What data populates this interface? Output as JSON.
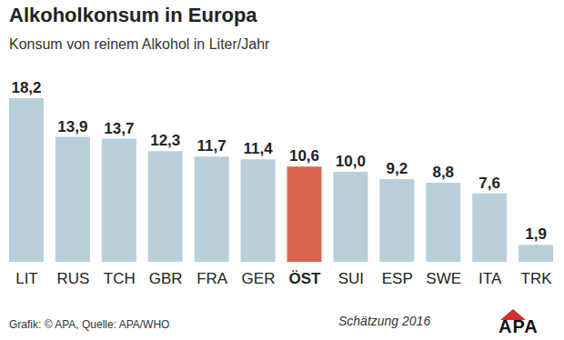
{
  "chart_data": {
    "type": "bar",
    "title": "Alkoholkonsum in Europa",
    "subtitle": "Konsum von reinem Alkohol in Liter/Jahr",
    "categories": [
      "LIT",
      "RUS",
      "TCH",
      "GBR",
      "FRA",
      "GER",
      "ÖST",
      "SUI",
      "ESP",
      "SWE",
      "ITA",
      "TRK"
    ],
    "values": [
      18.2,
      13.9,
      13.7,
      12.3,
      11.7,
      11.4,
      10.6,
      10.0,
      9.2,
      8.8,
      7.6,
      1.9
    ],
    "value_labels": [
      "18,2",
      "13,9",
      "13,7",
      "12,3",
      "11,7",
      "11,4",
      "10,6",
      "10,0",
      "9,2",
      "8,8",
      "7,6",
      "1,9"
    ],
    "colors": [
      "#b9cfdc",
      "#b9cfdc",
      "#b9cfdc",
      "#b9cfdc",
      "#b9cfdc",
      "#b9cfdc",
      "#d9654f",
      "#b9cfdc",
      "#b9cfdc",
      "#b9cfdc",
      "#b9cfdc",
      "#b9cfdc"
    ],
    "ylim": [
      0,
      18.2
    ],
    "data_labels": true,
    "tick_labels": "x",
    "grid": false,
    "annotations": [
      "Grafik: © APA, Quelle: APA/WHO",
      "Schätzung 2016",
      "APA"
    ]
  }
}
